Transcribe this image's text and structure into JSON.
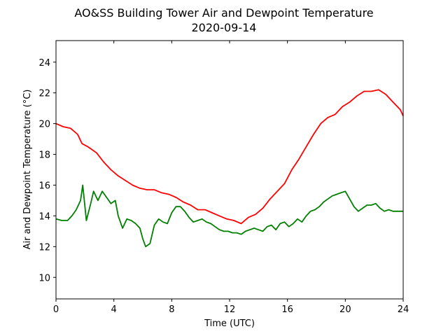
{
  "chart_data": {
    "type": "line",
    "title": "AO&SS Building Tower Air and Dewpoint Temperature",
    "subtitle": "2020-09-14",
    "xlabel": "Time (UTC)",
    "ylabel": "Air and Dewpoint Temperature (°C)",
    "xlim": [
      0,
      24
    ],
    "ylim": [
      8.6,
      25.4
    ],
    "x_ticks": [
      0,
      4,
      8,
      12,
      16,
      20,
      24
    ],
    "y_ticks": [
      10,
      12,
      14,
      16,
      18,
      20,
      22,
      24
    ],
    "grid": false,
    "legend": "none",
    "series": [
      {
        "color": "#ff0000",
        "x": [
          0,
          0.5,
          1,
          1.5,
          1.8,
          2.2,
          2.8,
          3.3,
          3.8,
          4.3,
          4.8,
          5.3,
          5.8,
          6.3,
          6.8,
          7.3,
          7.8,
          8.3,
          8.8,
          9.3,
          9.8,
          10.3,
          10.8,
          11.3,
          11.8,
          12.3,
          12.8,
          13.3,
          13.8,
          14.3,
          14.8,
          15.3,
          15.8,
          16.3,
          16.8,
          17.3,
          17.8,
          18.3,
          18.8,
          19.3,
          19.8,
          20.3,
          20.8,
          21.3,
          21.8,
          22.3,
          22.8,
          23.3,
          23.8,
          24
        ],
        "y": [
          20.0,
          19.8,
          19.7,
          19.3,
          18.7,
          18.5,
          18.1,
          17.5,
          17.0,
          16.6,
          16.3,
          16.0,
          15.8,
          15.7,
          15.7,
          15.5,
          15.4,
          15.2,
          14.9,
          14.7,
          14.4,
          14.4,
          14.2,
          14.0,
          13.8,
          13.7,
          13.5,
          13.9,
          14.1,
          14.5,
          15.1,
          15.6,
          16.1,
          17.0,
          17.7,
          18.5,
          19.3,
          20.0,
          20.4,
          20.6,
          21.1,
          21.4,
          21.8,
          22.1,
          22.1,
          22.2,
          21.9,
          21.4,
          20.9,
          20.5
        ]
      },
      {
        "color": "#008000",
        "x": [
          0,
          0.4,
          0.8,
          1.1,
          1.4,
          1.7,
          1.85,
          2.1,
          2.4,
          2.6,
          2.9,
          3.2,
          3.5,
          3.8,
          4.1,
          4.3,
          4.6,
          4.9,
          5.2,
          5.5,
          5.8,
          6.0,
          6.2,
          6.5,
          6.8,
          7.1,
          7.4,
          7.7,
          8.0,
          8.3,
          8.6,
          8.9,
          9.2,
          9.5,
          9.8,
          10.1,
          10.4,
          10.7,
          11.0,
          11.3,
          11.6,
          11.9,
          12.2,
          12.5,
          12.8,
          13.1,
          13.4,
          13.7,
          14.0,
          14.3,
          14.6,
          14.9,
          15.2,
          15.5,
          15.8,
          16.1,
          16.4,
          16.7,
          17.0,
          17.3,
          17.6,
          17.9,
          18.2,
          18.5,
          18.8,
          19.1,
          19.4,
          19.7,
          20.0,
          20.3,
          20.6,
          20.9,
          21.2,
          21.5,
          21.8,
          22.1,
          22.4,
          22.7,
          23.0,
          23.3,
          23.6,
          24
        ],
        "y": [
          13.8,
          13.7,
          13.7,
          14.0,
          14.4,
          15.0,
          16.0,
          13.7,
          14.8,
          15.6,
          15.0,
          15.6,
          15.2,
          14.8,
          15.0,
          14.0,
          13.2,
          13.8,
          13.7,
          13.5,
          13.2,
          12.5,
          12.0,
          12.2,
          13.4,
          13.8,
          13.6,
          13.5,
          14.2,
          14.6,
          14.6,
          14.3,
          13.9,
          13.6,
          13.7,
          13.8,
          13.6,
          13.5,
          13.3,
          13.1,
          13.0,
          13.0,
          12.9,
          12.9,
          12.8,
          13.0,
          13.1,
          13.2,
          13.1,
          13.0,
          13.3,
          13.4,
          13.1,
          13.5,
          13.6,
          13.3,
          13.5,
          13.8,
          13.6,
          14.0,
          14.3,
          14.4,
          14.6,
          14.9,
          15.1,
          15.3,
          15.4,
          15.5,
          15.6,
          15.1,
          14.6,
          14.3,
          14.5,
          14.7,
          14.7,
          14.8,
          14.5,
          14.3,
          14.4,
          14.3,
          14.3,
          14.3
        ]
      }
    ]
  }
}
